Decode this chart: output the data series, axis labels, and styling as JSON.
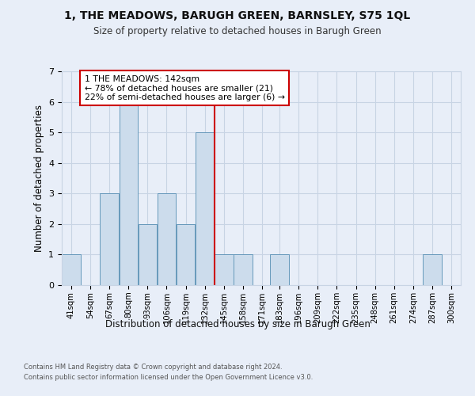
{
  "title": "1, THE MEADOWS, BARUGH GREEN, BARNSLEY, S75 1QL",
  "subtitle": "Size of property relative to detached houses in Barugh Green",
  "xlabel": "Distribution of detached houses by size in Barugh Green",
  "ylabel": "Number of detached properties",
  "footer_line1": "Contains HM Land Registry data © Crown copyright and database right 2024.",
  "footer_line2": "Contains public sector information licensed under the Open Government Licence v3.0.",
  "bin_labels": [
    "41sqm",
    "54sqm",
    "67sqm",
    "80sqm",
    "93sqm",
    "106sqm",
    "119sqm",
    "132sqm",
    "145sqm",
    "158sqm",
    "171sqm",
    "183sqm",
    "196sqm",
    "209sqm",
    "222sqm",
    "235sqm",
    "248sqm",
    "261sqm",
    "274sqm",
    "287sqm",
    "300sqm"
  ],
  "bar_heights": [
    1,
    0,
    3,
    6,
    2,
    3,
    2,
    5,
    1,
    1,
    0,
    1,
    0,
    0,
    0,
    0,
    0,
    0,
    0,
    1,
    0
  ],
  "bar_color": "#ccdcec",
  "bar_edge_color": "#6699bb",
  "grid_color": "#c8d4e4",
  "background_color": "#e8eef8",
  "property_line_color": "#cc0000",
  "property_line_x": 145,
  "annotation_text": "1 THE MEADOWS: 142sqm\n← 78% of detached houses are smaller (21)\n22% of semi-detached houses are larger (6) →",
  "annotation_box_facecolor": "#ffffff",
  "annotation_border_color": "#cc0000",
  "ylim": [
    0,
    7
  ],
  "yticks": [
    0,
    1,
    2,
    3,
    4,
    5,
    6,
    7
  ],
  "bin_edges": [
    41,
    54,
    67,
    80,
    93,
    106,
    119,
    132,
    145,
    158,
    171,
    183,
    196,
    209,
    222,
    235,
    248,
    261,
    274,
    287,
    300,
    313
  ]
}
